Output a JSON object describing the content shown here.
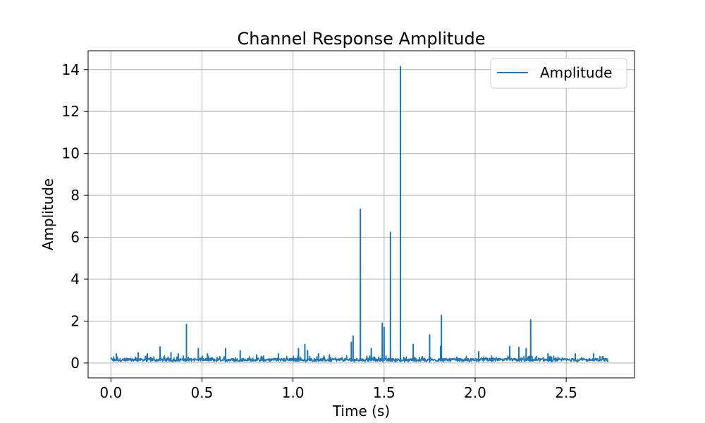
{
  "chart_data": {
    "type": "line",
    "title": "Channel Response Amplitude",
    "xlabel": "Time (s)",
    "ylabel": "Amplitude",
    "xlim": [
      -0.125,
      2.875
    ],
    "ylim": [
      -0.71,
      14.9
    ],
    "x_ticks": [
      0.0,
      0.5,
      1.0,
      1.5,
      2.0,
      2.5
    ],
    "x_tick_labels": [
      "0.0",
      "0.5",
      "1.0",
      "1.5",
      "2.0",
      "2.5"
    ],
    "y_ticks": [
      0,
      2,
      4,
      6,
      8,
      10,
      12,
      14
    ],
    "y_tick_labels": [
      "0",
      "2",
      "4",
      "6",
      "8",
      "10",
      "12",
      "14"
    ],
    "grid": true,
    "legend_position": "top-right",
    "series": [
      {
        "name": "Amplitude",
        "color": "#1f77b4",
        "x_range": [
          0.0,
          2.73
        ],
        "baseline": 0.15,
        "noise_amplitude": 0.12,
        "spikes": [
          {
            "x": 0.03,
            "y": 0.45
          },
          {
            "x": 0.15,
            "y": 0.5
          },
          {
            "x": 0.2,
            "y": 0.45
          },
          {
            "x": 0.27,
            "y": 0.78
          },
          {
            "x": 0.33,
            "y": 0.5
          },
          {
            "x": 0.37,
            "y": 0.45
          },
          {
            "x": 0.415,
            "y": 1.85
          },
          {
            "x": 0.48,
            "y": 0.7
          },
          {
            "x": 0.53,
            "y": 0.45
          },
          {
            "x": 0.63,
            "y": 0.7
          },
          {
            "x": 0.71,
            "y": 0.6
          },
          {
            "x": 0.8,
            "y": 0.4
          },
          {
            "x": 0.92,
            "y": 0.45
          },
          {
            "x": 1.03,
            "y": 0.7
          },
          {
            "x": 1.065,
            "y": 0.9
          },
          {
            "x": 1.08,
            "y": 0.6
          },
          {
            "x": 1.14,
            "y": 0.45
          },
          {
            "x": 1.2,
            "y": 0.4
          },
          {
            "x": 1.32,
            "y": 1.0
          },
          {
            "x": 1.33,
            "y": 1.3
          },
          {
            "x": 1.37,
            "y": 7.35
          },
          {
            "x": 1.43,
            "y": 0.7
          },
          {
            "x": 1.49,
            "y": 1.9
          },
          {
            "x": 1.5,
            "y": 1.7
          },
          {
            "x": 1.535,
            "y": 6.25
          },
          {
            "x": 1.59,
            "y": 14.15
          },
          {
            "x": 1.66,
            "y": 0.9
          },
          {
            "x": 1.75,
            "y": 1.35
          },
          {
            "x": 1.81,
            "y": 0.8
          },
          {
            "x": 1.815,
            "y": 2.28
          },
          {
            "x": 2.02,
            "y": 0.55
          },
          {
            "x": 2.19,
            "y": 0.8
          },
          {
            "x": 2.24,
            "y": 0.75
          },
          {
            "x": 2.28,
            "y": 0.7
          },
          {
            "x": 2.305,
            "y": 2.07
          },
          {
            "x": 2.4,
            "y": 0.45
          },
          {
            "x": 2.55,
            "y": 0.45
          },
          {
            "x": 2.65,
            "y": 0.45
          }
        ]
      }
    ]
  }
}
